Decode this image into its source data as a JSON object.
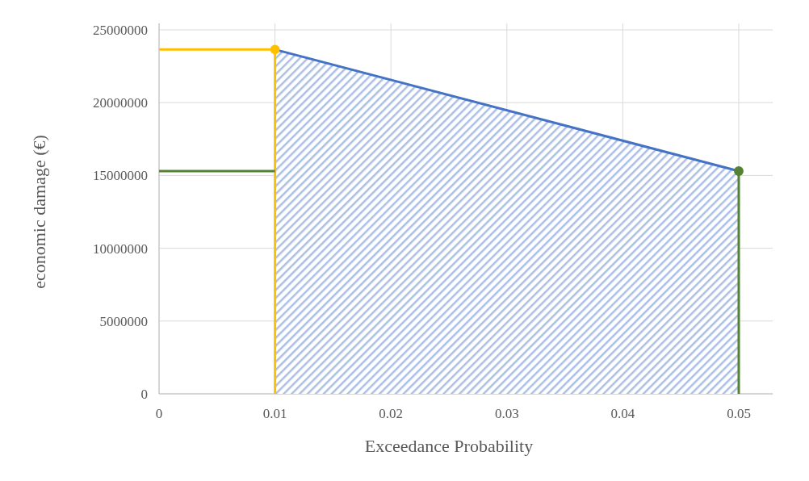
{
  "chart_data": {
    "type": "line",
    "xlabel": "Exceedance Probability",
    "ylabel": "economic damage (€)",
    "xlim": [
      0,
      0.05
    ],
    "xticks": [
      0,
      0.01,
      0.02,
      0.03,
      0.04,
      0.05
    ],
    "ylim": [
      0,
      25000000
    ],
    "yticks": [
      0,
      5000000,
      10000000,
      15000000,
      20000000,
      25000000
    ],
    "grid": true,
    "marker": "none",
    "line_style": "solid",
    "series": [
      {
        "type": "area",
        "color": "#4472c4",
        "x": [
          0.01,
          0.05
        ],
        "values": [
          23650000,
          15300000
        ]
      },
      {
        "color": "#ffc000",
        "x": [
          0,
          0.01,
          0.01
        ],
        "values": [
          23650000,
          23650000,
          0
        ]
      },
      {
        "color": "#548235",
        "x": [
          0,
          0.01
        ],
        "values": [
          15300000,
          15300000
        ]
      },
      {
        "color": "#548235",
        "x": [
          0.05,
          0.05
        ],
        "values": [
          15300000,
          0
        ]
      },
      {
        "type": "scatter",
        "marker": "circle",
        "color": "#ffc000",
        "x": [
          0.01
        ],
        "values": [
          23650000
        ]
      },
      {
        "type": "scatter",
        "marker": "circle",
        "color": "#548235",
        "x": [
          0.05
        ],
        "values": [
          15300000
        ]
      }
    ]
  }
}
